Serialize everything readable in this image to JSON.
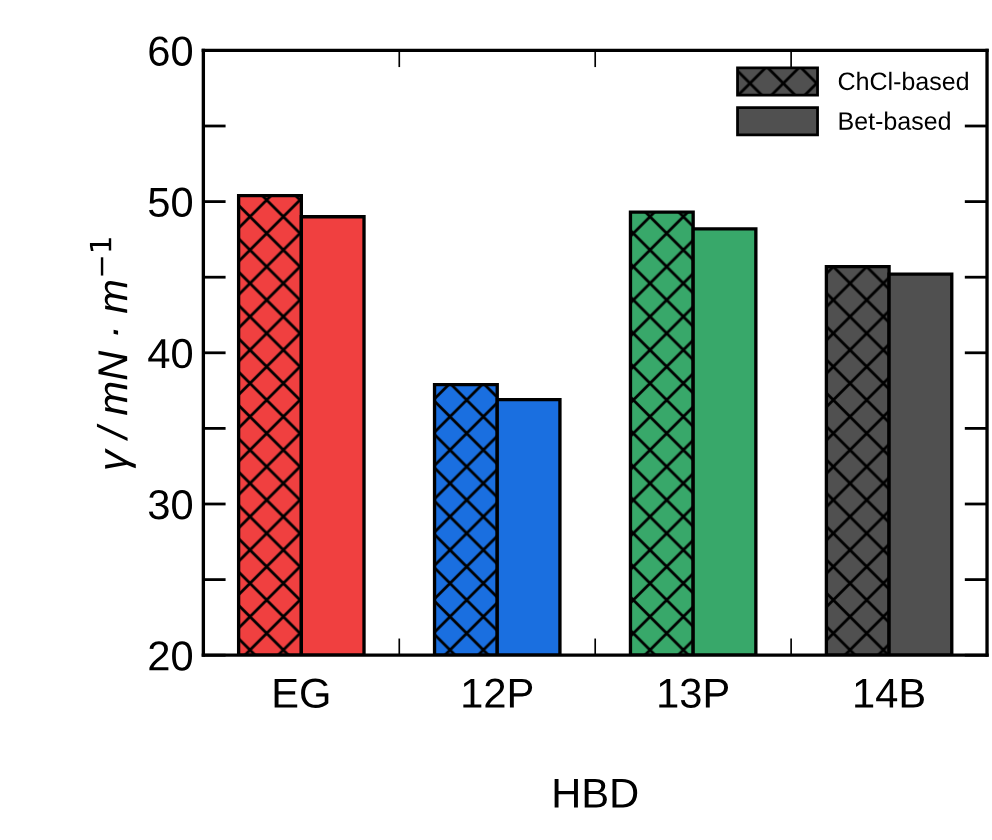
{
  "chart_data": {
    "type": "bar",
    "xlabel": "HBD",
    "ylabel": "γ / mN · m$^{−1}$",
    "categories": [
      "EG",
      "12P",
      "13P",
      "14B"
    ],
    "series": [
      {
        "name": "ChCl-based",
        "color": "#505050",
        "marker": "cross",
        "colors": [
          "#f04040",
          "#1a6fe0",
          "#38a86a",
          "#505050"
        ],
        "values": [
          50.4,
          37.9,
          49.3,
          45.7
        ]
      },
      {
        "name": "Bet-based",
        "color": "#505050",
        "colors": [
          "#f04040",
          "#1a6fe0",
          "#38a86a",
          "#505050"
        ],
        "values": [
          49.0,
          36.9,
          48.2,
          45.2
        ]
      }
    ],
    "ylim": [
      20,
      60
    ],
    "yticks": [
      20,
      {
        "value": 25,
        "label": null
      },
      30,
      {
        "value": 35,
        "label": null
      },
      40,
      {
        "value": 45,
        "label": null
      },
      50,
      {
        "value": 55,
        "label": null
      },
      60
    ],
    "legend": "top right",
    "grid": false
  }
}
